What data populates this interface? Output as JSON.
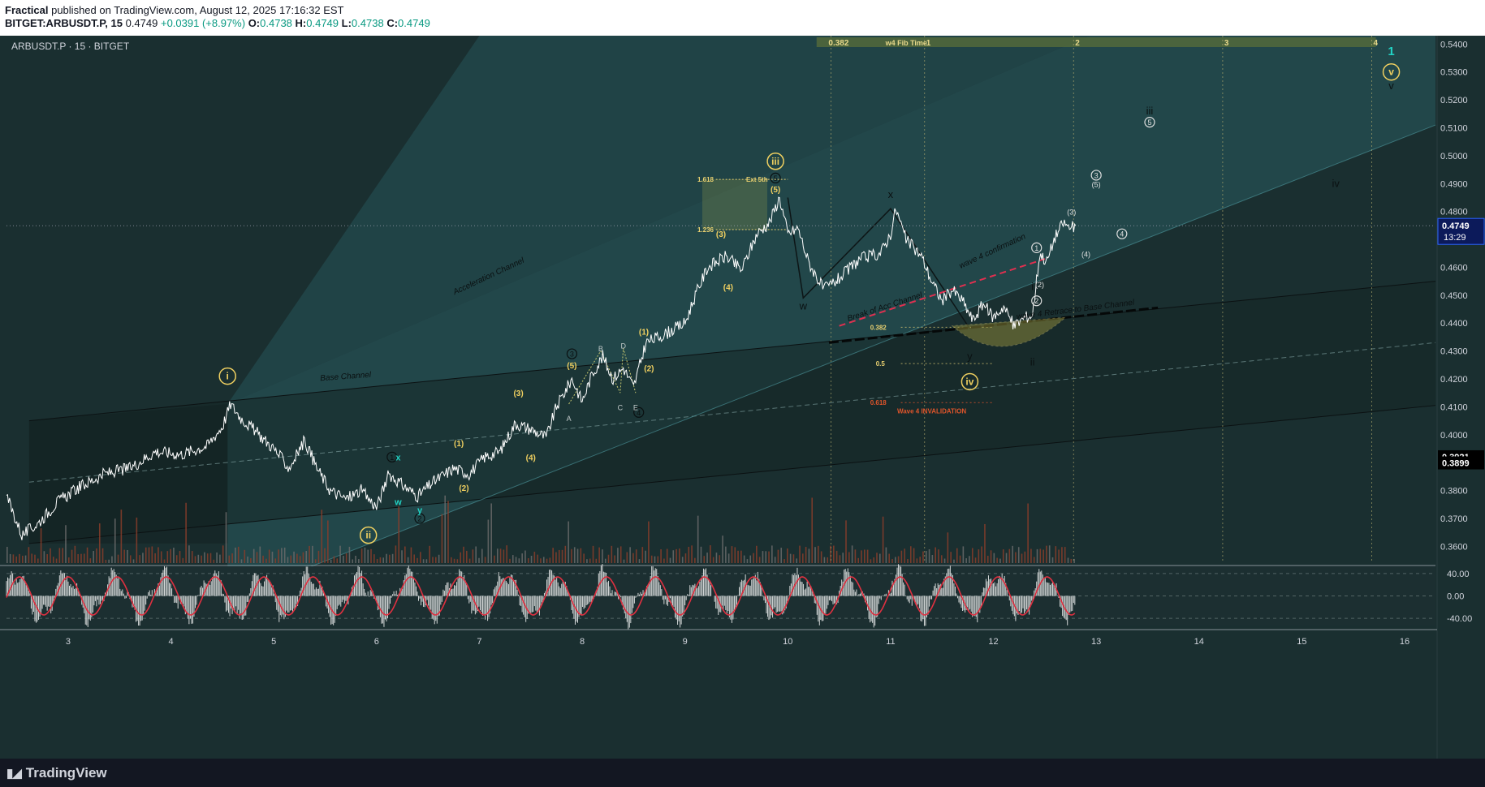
{
  "header": {
    "author": "Fractical",
    "published_text": " published on TradingView.com, August 12, 2025 17:16:32 EST",
    "symbol": "BITGET:ARBUSDT.P, 15",
    "last": "0.4749",
    "change": "+0.0391 (+8.97%)",
    "o_label": "O:",
    "o": "0.4738",
    "h_label": "H:",
    "h": "0.4749",
    "l_label": "L:",
    "l": "0.4738",
    "c_label": "C:",
    "c": "0.4749"
  },
  "chart_title": "ARBUSDT.P · 15 · BITGET",
  "footer": {
    "brand": "TradingView"
  },
  "colors": {
    "bg": "#1a2f30",
    "channel_upper": "#2a5b60",
    "price_line": "#ffffff",
    "volume": "#8a3d2a",
    "label_yellow": "#f0d060",
    "label_light": "#e0e0e0",
    "invalid_red": "#e0552b",
    "osc_red": "#e03040",
    "price_tag": "#2962ff",
    "wave_teal": "#22d3c5"
  },
  "chart_data": {
    "type": "line",
    "symbol": "ARBUSDT.P",
    "interval": "15",
    "exchange": "BITGET",
    "y_ticks": [
      "0.5400",
      "0.5300",
      "0.5200",
      "0.5100",
      "0.5000",
      "0.4900",
      "0.4800",
      "0.4700",
      "0.4600",
      "0.4500",
      "0.4400",
      "0.4300",
      "0.4200",
      "0.4100",
      "0.4000",
      "0.3900",
      "0.3800",
      "0.3700",
      "0.3600"
    ],
    "y_range": [
      0.354,
      0.543
    ],
    "x_ticks": [
      "3",
      "4",
      "5",
      "6",
      "7",
      "8",
      "9",
      "10",
      "11",
      "12",
      "13",
      "14",
      "15",
      "16"
    ],
    "x_range_days": [
      2.4,
      16.3
    ],
    "price_tags": [
      {
        "value": "0.4749",
        "sub": "13:29"
      },
      {
        "value": "0.3921"
      },
      {
        "value": "0.3899"
      }
    ],
    "price_path": [
      [
        2.4,
        0.378
      ],
      [
        2.55,
        0.364
      ],
      [
        2.7,
        0.368
      ],
      [
        2.9,
        0.376
      ],
      [
        3.1,
        0.381
      ],
      [
        3.35,
        0.386
      ],
      [
        3.6,
        0.388
      ],
      [
        3.85,
        0.394
      ],
      [
        4.1,
        0.393
      ],
      [
        4.35,
        0.396
      ],
      [
        4.5,
        0.403
      ],
      [
        4.58,
        0.411
      ],
      [
        4.68,
        0.406
      ],
      [
        4.8,
        0.402
      ],
      [
        5.0,
        0.395
      ],
      [
        5.15,
        0.388
      ],
      [
        5.3,
        0.398
      ],
      [
        5.42,
        0.388
      ],
      [
        5.55,
        0.38
      ],
      [
        5.7,
        0.377
      ],
      [
        5.85,
        0.38
      ],
      [
        6.0,
        0.374
      ],
      [
        6.12,
        0.386
      ],
      [
        6.25,
        0.382
      ],
      [
        6.4,
        0.378
      ],
      [
        6.55,
        0.383
      ],
      [
        6.75,
        0.388
      ],
      [
        6.9,
        0.386
      ],
      [
        7.05,
        0.392
      ],
      [
        7.2,
        0.394
      ],
      [
        7.35,
        0.404
      ],
      [
        7.5,
        0.402
      ],
      [
        7.65,
        0.399
      ],
      [
        7.75,
        0.41
      ],
      [
        7.9,
        0.42
      ],
      [
        8.0,
        0.412
      ],
      [
        8.1,
        0.422
      ],
      [
        8.2,
        0.428
      ],
      [
        8.3,
        0.42
      ],
      [
        8.4,
        0.424
      ],
      [
        8.5,
        0.417
      ],
      [
        8.62,
        0.433
      ],
      [
        8.8,
        0.436
      ],
      [
        9.0,
        0.44
      ],
      [
        9.1,
        0.45
      ],
      [
        9.22,
        0.46
      ],
      [
        9.4,
        0.464
      ],
      [
        9.55,
        0.459
      ],
      [
        9.7,
        0.472
      ],
      [
        9.82,
        0.476
      ],
      [
        9.92,
        0.485
      ],
      [
        10.0,
        0.472
      ],
      [
        10.1,
        0.474
      ],
      [
        10.2,
        0.462
      ],
      [
        10.35,
        0.452
      ],
      [
        10.5,
        0.456
      ],
      [
        10.7,
        0.463
      ],
      [
        10.9,
        0.465
      ],
      [
        11.0,
        0.472
      ],
      [
        11.05,
        0.481
      ],
      [
        11.15,
        0.47
      ],
      [
        11.3,
        0.464
      ],
      [
        11.4,
        0.455
      ],
      [
        11.5,
        0.448
      ],
      [
        11.6,
        0.452
      ],
      [
        11.7,
        0.448
      ],
      [
        11.8,
        0.441
      ],
      [
        11.9,
        0.447
      ],
      [
        12.0,
        0.442
      ],
      [
        12.1,
        0.446
      ],
      [
        12.2,
        0.439
      ],
      [
        12.3,
        0.442
      ],
      [
        12.38,
        0.443
      ],
      [
        12.45,
        0.465
      ],
      [
        12.52,
        0.462
      ],
      [
        12.6,
        0.471
      ],
      [
        12.68,
        0.476
      ],
      [
        12.75,
        0.474
      ],
      [
        12.8,
        0.4749
      ]
    ],
    "wave_labels": [
      {
        "text": "i",
        "style": "circle",
        "x": 4.55,
        "y": 0.421
      },
      {
        "text": "ii",
        "style": "circle",
        "x": 5.92,
        "y": 0.364
      },
      {
        "text": "iii",
        "style": "circle",
        "x": 9.88,
        "y": 0.498
      },
      {
        "text": "iv",
        "style": "circle",
        "x": 11.77,
        "y": 0.419
      },
      {
        "text": "v",
        "style": "circle",
        "x": 15.87,
        "y": 0.53
      },
      {
        "text": "1",
        "style": "teal",
        "x": 15.87,
        "y": 0.5375
      },
      {
        "text": "v",
        "style": "plain",
        "x": 15.87,
        "y": 0.525
      },
      {
        "text": "(1)",
        "style": "yellow",
        "x": 6.8,
        "y": 0.397
      },
      {
        "text": "(2)",
        "style": "yellow",
        "x": 6.85,
        "y": 0.381
      },
      {
        "text": "(3)",
        "style": "yellow",
        "x": 7.38,
        "y": 0.415
      },
      {
        "text": "(4)",
        "style": "yellow",
        "x": 7.5,
        "y": 0.392
      },
      {
        "text": "(5)",
        "style": "yellow",
        "x": 7.9,
        "y": 0.425
      },
      {
        "text": "(1)",
        "style": "yellow",
        "x": 8.6,
        "y": 0.437
      },
      {
        "text": "(2)",
        "style": "yellow",
        "x": 8.65,
        "y": 0.424
      },
      {
        "text": "(3)",
        "style": "yellow",
        "x": 9.35,
        "y": 0.472
      },
      {
        "text": "(4)",
        "style": "yellow",
        "x": 9.42,
        "y": 0.453
      },
      {
        "text": "(5)",
        "style": "yellow",
        "x": 9.88,
        "y": 0.488
      },
      {
        "text": "3",
        "style": "dark-circle",
        "x": 7.9,
        "y": 0.429
      },
      {
        "text": "4",
        "style": "dark-circle",
        "x": 8.55,
        "y": 0.408
      },
      {
        "text": "5",
        "style": "dark-circle",
        "x": 9.88,
        "y": 0.492
      },
      {
        "text": "1",
        "style": "dark-circle",
        "x": 6.15,
        "y": 0.392
      },
      {
        "text": "2",
        "style": "dark-circle",
        "x": 6.42,
        "y": 0.37
      },
      {
        "text": "A",
        "style": "small",
        "x": 7.87,
        "y": 0.406
      },
      {
        "text": "B",
        "style": "small",
        "x": 8.18,
        "y": 0.431
      },
      {
        "text": "C",
        "style": "small",
        "x": 8.37,
        "y": 0.41
      },
      {
        "text": "D",
        "style": "small",
        "x": 8.4,
        "y": 0.432
      },
      {
        "text": "E",
        "style": "small",
        "x": 8.52,
        "y": 0.41
      },
      {
        "text": "x",
        "style": "teal-small",
        "x": 6.21,
        "y": 0.392
      },
      {
        "text": "w",
        "style": "teal-small",
        "x": 6.21,
        "y": 0.376
      },
      {
        "text": "y",
        "style": "teal-small",
        "x": 6.42,
        "y": 0.373
      },
      {
        "text": "w",
        "style": "plain",
        "x": 10.15,
        "y": 0.446
      },
      {
        "text": "x",
        "style": "plain",
        "x": 11.0,
        "y": 0.486
      },
      {
        "text": "y",
        "style": "plain",
        "x": 11.77,
        "y": 0.428
      },
      {
        "text": "i",
        "style": "plain",
        "x": 12.38,
        "y": 0.453
      },
      {
        "text": "ii",
        "style": "plain",
        "x": 12.38,
        "y": 0.426
      },
      {
        "text": "iii",
        "style": "plain",
        "x": 13.52,
        "y": 0.516
      },
      {
        "text": "iv",
        "style": "plain",
        "x": 15.33,
        "y": 0.49
      },
      {
        "text": "5",
        "style": "light-circle",
        "x": 13.52,
        "y": 0.512
      },
      {
        "text": "4",
        "style": "light-circle",
        "x": 13.25,
        "y": 0.472
      },
      {
        "text": "3",
        "style": "light-circle",
        "x": 13.0,
        "y": 0.493
      },
      {
        "text": "(5)",
        "style": "light-small",
        "x": 13.0,
        "y": 0.49
      },
      {
        "text": "(3)",
        "style": "light-small",
        "x": 12.76,
        "y": 0.48
      },
      {
        "text": "(4)",
        "style": "light-small",
        "x": 12.9,
        "y": 0.465
      },
      {
        "text": "(2)",
        "style": "light-small",
        "x": 12.45,
        "y": 0.454
      },
      {
        "text": "1",
        "style": "light-circle",
        "x": 12.42,
        "y": 0.467
      },
      {
        "text": "2",
        "style": "light-circle",
        "x": 12.42,
        "y": 0.448
      }
    ],
    "channel_labels": [
      {
        "text": "Acceleration Channel",
        "x": 7.1,
        "y": 0.456
      },
      {
        "text": "Base Channel",
        "x": 5.7,
        "y": 0.42
      },
      {
        "text": "Break of Acc Channel",
        "x": 10.95,
        "y": 0.445
      },
      {
        "text": "wave 4 confirmation",
        "x": 12.0,
        "y": 0.465
      },
      {
        "text": "wave 4 Retrace to Base Channel",
        "x": 12.8,
        "y": 0.444
      }
    ],
    "fib_labels": [
      {
        "text": "1.618",
        "x": 9.2,
        "y": 0.4915
      },
      {
        "text": "Ext 5th",
        "x": 9.7,
        "y": 0.4915
      },
      {
        "text": "1.236",
        "x": 9.2,
        "y": 0.4735
      },
      {
        "text": "0.382",
        "x": 10.88,
        "y": 0.4385
      },
      {
        "text": "0.5",
        "x": 10.9,
        "y": 0.4255
      },
      {
        "text": "0.618",
        "x": 10.88,
        "y": 0.4115
      },
      {
        "text": "Wave 4 INVALIDATION",
        "x": 11.4,
        "y": 0.4085
      }
    ],
    "fib_time": {
      "labels": [
        "0.382",
        "w4 Fib Time",
        "1",
        "2",
        "3",
        "4"
      ]
    },
    "oscillator": {
      "ticks": [
        "40.00",
        "0.00",
        "-40.00"
      ]
    }
  }
}
